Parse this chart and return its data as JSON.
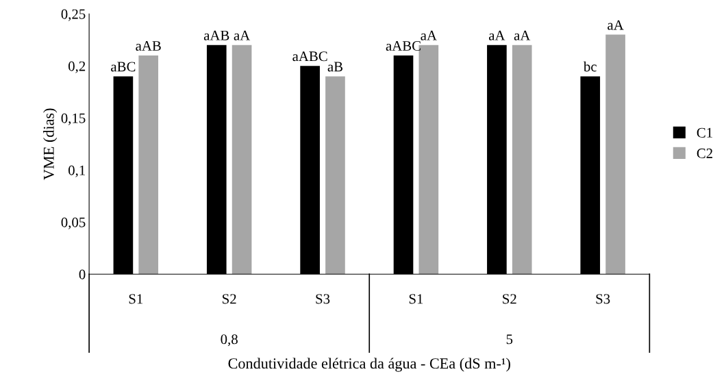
{
  "chart_data": {
    "type": "bar",
    "ylabel": "VME (dias)",
    "xlabel": "Condutividade elétrica da água - CEa (dS m-¹)",
    "categories": [
      "S1",
      "S2",
      "S3",
      "S1",
      "S2",
      "S3"
    ],
    "series": [
      {
        "name": "C1",
        "color": "#000000",
        "values": [
          0.19,
          0.22,
          0.2,
          0.21,
          0.22,
          0.19
        ],
        "value_labels": [
          "aBC",
          "aAB",
          "aABC",
          "aABC",
          "aA",
          "bc"
        ]
      },
      {
        "name": "C2",
        "color": "#a6a6a6",
        "values": [
          0.21,
          0.22,
          0.19,
          0.22,
          0.22,
          0.23
        ],
        "value_labels": [
          "aAB",
          "aA",
          "aB",
          "aA",
          "aA",
          "aA"
        ]
      }
    ],
    "annotations": [
      "0,8",
      "5"
    ],
    "ylim": [
      0,
      0.25
    ],
    "yticks": [
      0,
      {
        "value": 0.05,
        "label": "0,05"
      },
      {
        "value": 0.1,
        "label": "0,1"
      },
      {
        "value": 0.15,
        "label": "0,15"
      },
      {
        "value": 0.2,
        "label": "0,2"
      },
      {
        "value": 0.25,
        "label": "0,25"
      }
    ],
    "grid": false,
    "legend": "right"
  }
}
